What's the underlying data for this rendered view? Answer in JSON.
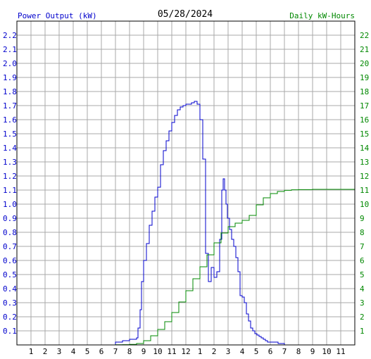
{
  "chart_data": {
    "type": "line",
    "title": "05/28/2024",
    "ylabel_left": "Power Output (kW)",
    "ylabel_right": "Daily kW-Hours",
    "x_ticks": [
      "1",
      "2",
      "3",
      "4",
      "5",
      "6",
      "7",
      "8",
      "9",
      "10",
      "11",
      "12",
      "1",
      "2",
      "3",
      "4",
      "5",
      "6",
      "7",
      "8",
      "9",
      "10",
      "11"
    ],
    "x_range_hours": [
      0,
      24
    ],
    "left_axis": {
      "ylim": [
        0,
        2.3
      ],
      "ticks": [
        "0.1",
        "0.2",
        "0.3",
        "0.4",
        "0.5",
        "0.6",
        "0.7",
        "0.8",
        "0.9",
        "1.0",
        "1.1",
        "1.2",
        "1.3",
        "1.4",
        "1.5",
        "1.6",
        "1.7",
        "1.8",
        "1.9",
        "2.0",
        "2.1",
        "2.2"
      ]
    },
    "right_axis": {
      "ylim": [
        0,
        23
      ],
      "ticks": [
        "1",
        "2",
        "3",
        "4",
        "5",
        "6",
        "7",
        "8",
        "9",
        "10",
        "11",
        "12",
        "13",
        "14",
        "15",
        "16",
        "17",
        "18",
        "19",
        "20",
        "21",
        "22"
      ]
    },
    "grid": true,
    "series": [
      {
        "axis": "left",
        "color": "#0000cc",
        "hours": [
          6.6,
          7.0,
          7.5,
          8.0,
          8.5,
          8.6,
          8.75,
          8.85,
          9.0,
          9.2,
          9.4,
          9.6,
          9.8,
          10.0,
          10.2,
          10.4,
          10.6,
          10.8,
          11.0,
          11.2,
          11.4,
          11.6,
          11.8,
          12.0,
          12.2,
          12.4,
          12.6,
          12.8,
          13.0,
          13.2,
          13.4,
          13.6,
          13.8,
          14.0,
          14.2,
          14.4,
          14.55,
          14.65,
          14.75,
          14.85,
          14.95,
          15.1,
          15.25,
          15.4,
          15.55,
          15.7,
          15.85,
          16.0,
          16.15,
          16.3,
          16.45,
          16.6,
          16.75,
          16.9,
          17.05,
          17.2,
          17.35,
          17.5,
          17.65,
          17.8,
          17.95,
          18.1,
          18.25,
          18.4,
          18.55,
          18.7,
          18.85,
          19.0,
          19.2,
          19.4,
          19.6,
          19.8,
          20.0,
          20.2,
          20.4,
          20.6,
          20.8,
          21.0,
          21.2,
          21.4,
          21.6,
          21.8
        ],
        "values": [
          0.0,
          0.02,
          0.03,
          0.04,
          0.05,
          0.12,
          0.25,
          0.45,
          0.6,
          0.72,
          0.85,
          0.95,
          1.05,
          1.12,
          1.28,
          1.38,
          1.45,
          1.52,
          1.58,
          1.63,
          1.67,
          1.69,
          1.7,
          1.71,
          1.71,
          1.72,
          1.73,
          1.71,
          1.6,
          1.32,
          0.65,
          0.45,
          0.55,
          0.48,
          0.52,
          0.75,
          1.1,
          1.18,
          1.1,
          1.0,
          0.9,
          0.82,
          0.75,
          0.7,
          0.62,
          0.52,
          0.35,
          0.34,
          0.3,
          0.22,
          0.17,
          0.12,
          0.1,
          0.08,
          0.07,
          0.06,
          0.05,
          0.04,
          0.03,
          0.02,
          0.02,
          0.02,
          0.02,
          0.02,
          0.01,
          0.01,
          0.01,
          0.0,
          0.0,
          0.0,
          0.0,
          0.0,
          0.0,
          0.0,
          0.0,
          0.0,
          0.0,
          0.0,
          0.0,
          0.0,
          0.0,
          0.0
        ]
      },
      {
        "axis": "right",
        "color": "#008800",
        "hours": [
          6.6,
          7.0,
          7.5,
          8.0,
          8.5,
          9.0,
          9.5,
          10.0,
          10.5,
          11.0,
          11.5,
          12.0,
          12.5,
          13.0,
          13.5,
          14.0,
          14.5,
          15.0,
          15.5,
          16.0,
          16.5,
          17.0,
          17.5,
          18.0,
          18.5,
          19.0,
          19.5,
          20.0,
          21.0,
          22.0,
          23.0,
          24.0
        ],
        "values": [
          0.0,
          0.01,
          0.02,
          0.04,
          0.1,
          0.3,
          0.65,
          1.1,
          1.65,
          2.3,
          3.05,
          3.85,
          4.7,
          5.55,
          6.4,
          7.25,
          7.95,
          8.4,
          8.65,
          8.85,
          9.2,
          9.95,
          10.45,
          10.75,
          10.9,
          10.98,
          11.02,
          11.03,
          11.05,
          11.05,
          11.05,
          11.05
        ]
      }
    ]
  }
}
